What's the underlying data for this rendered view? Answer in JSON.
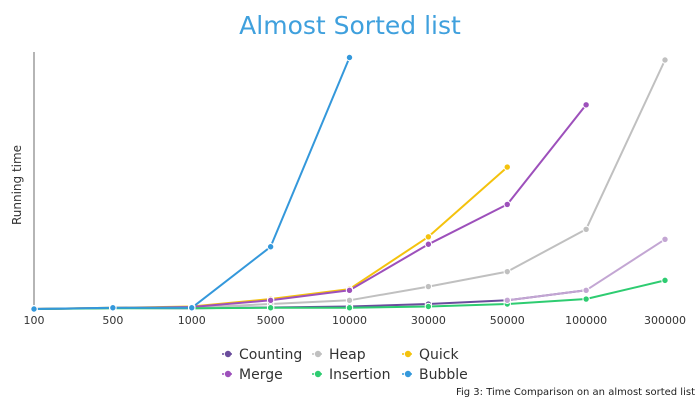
{
  "caption": "Fig 3: Time Comparison on an almost sorted list",
  "chart_data": {
    "type": "line",
    "title": "Almost Sorted list",
    "xlabel": "",
    "ylabel": "Running time",
    "categories": [
      "100",
      "500",
      "1000",
      "5000",
      "10000",
      "30000",
      "50000",
      "100000",
      "300000"
    ],
    "ylim": [
      0,
      100
    ],
    "grid": false,
    "legend": "bottom",
    "series": [
      {
        "name": "Counting",
        "color": "#6a4c9c",
        "values": [
          0,
          0.4,
          0.3,
          0.6,
          1.0,
          2.0,
          3.5,
          7.5,
          null
        ]
      },
      {
        "name": "Heap",
        "color": "#c0c0c0",
        "values": [
          0,
          0.5,
          0.5,
          2.0,
          3.5,
          9.0,
          15.0,
          32.0,
          100.0
        ]
      },
      {
        "name": "Quick",
        "color": "#f4c20d",
        "values": [
          0,
          0.5,
          1.0,
          4.0,
          8.0,
          29.0,
          57.0,
          null,
          null
        ]
      },
      {
        "name": "Merge",
        "color": "#9d50bb",
        "values": [
          0,
          0.4,
          0.8,
          3.5,
          7.5,
          26.0,
          42.0,
          82.0,
          null
        ]
      },
      {
        "name": "Insertion",
        "color": "#2ecc71",
        "values": [
          0,
          0.3,
          0.3,
          0.5,
          0.5,
          1.0,
          2.0,
          4.0,
          11.5
        ]
      },
      {
        "name": "Bubble",
        "color": "#3498db",
        "values": [
          0,
          0.5,
          0.5,
          25.0,
          101.0,
          null,
          null,
          null,
          null
        ]
      },
      {
        "name": "",
        "color": "#c3a6d3",
        "values": [
          null,
          null,
          null,
          null,
          null,
          null,
          3.5,
          7.5,
          28.0
        ]
      }
    ]
  }
}
